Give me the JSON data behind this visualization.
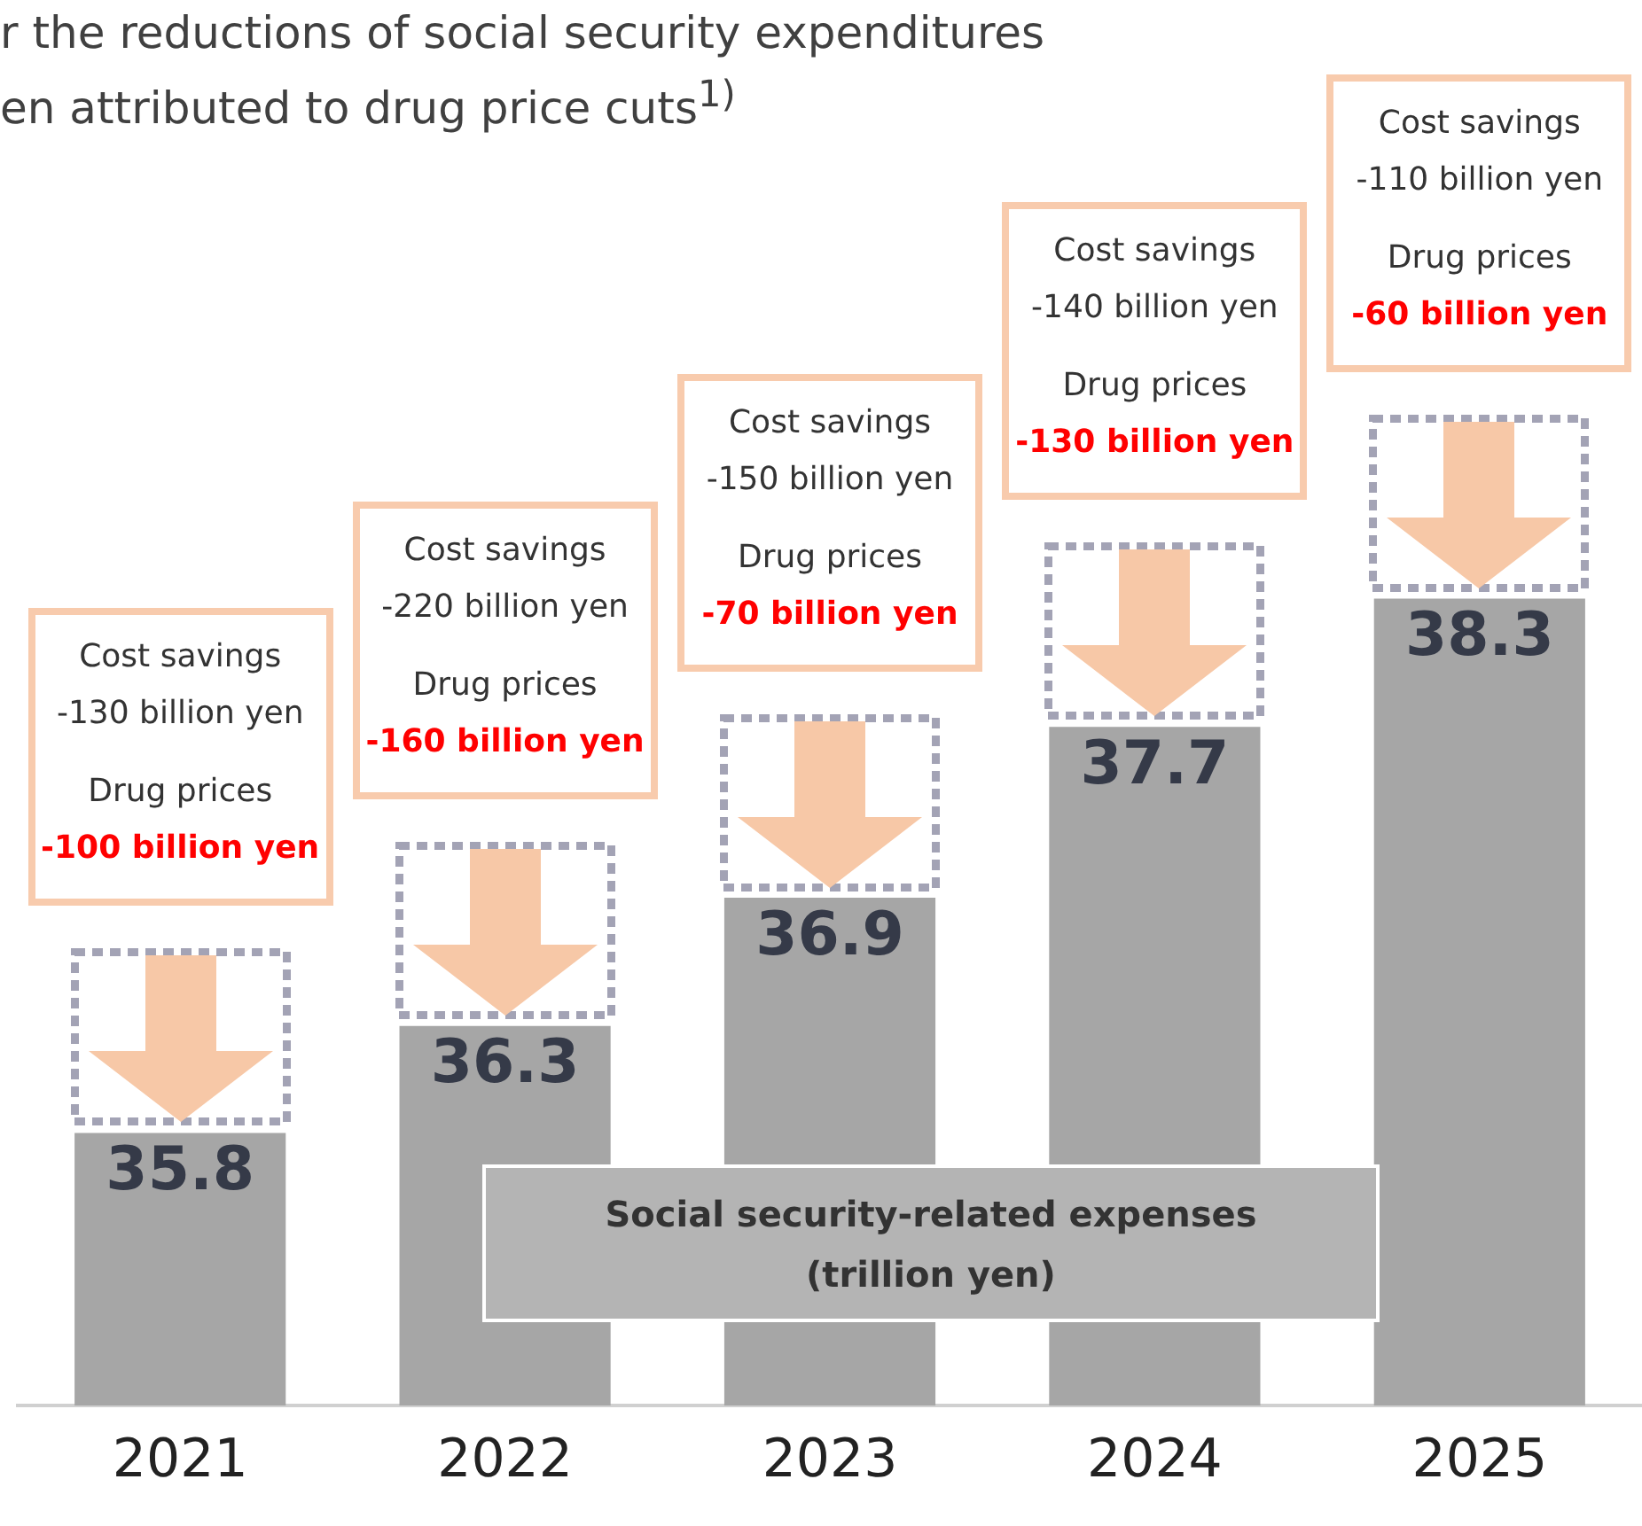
{
  "chart_data": {
    "type": "bar",
    "title": "r the reductions of social security expenditures\nen attributed to drug price cuts$^{1)}$",
    "ylabel": "Social security-related expenses\n(trillion yen)",
    "categories": [
      "2021",
      "2022",
      "2023",
      "2024",
      "2025"
    ],
    "values": [
      35.8,
      36.3,
      36.9,
      37.7,
      38.3
    ],
    "color": "#a6a6a6",
    "data_labels": true,
    "grid": false,
    "legend": false,
    "tick_labels": "x",
    "annotations": [
      "Cost savings\n-130 billion yen\nDrug prices\n-100 billion yen",
      "Cost savings\n-220 billion yen\nDrug prices\n-160 billion yen",
      "Cost savings\n-150 billion yen\nDrug prices\n-70 billion yen",
      "Cost savings\n-140 billion yen\nDrug prices\n-130 billion yen",
      "Cost savings\n-110 billion yen\nDrug prices\n-60 billion yen"
    ]
  }
}
